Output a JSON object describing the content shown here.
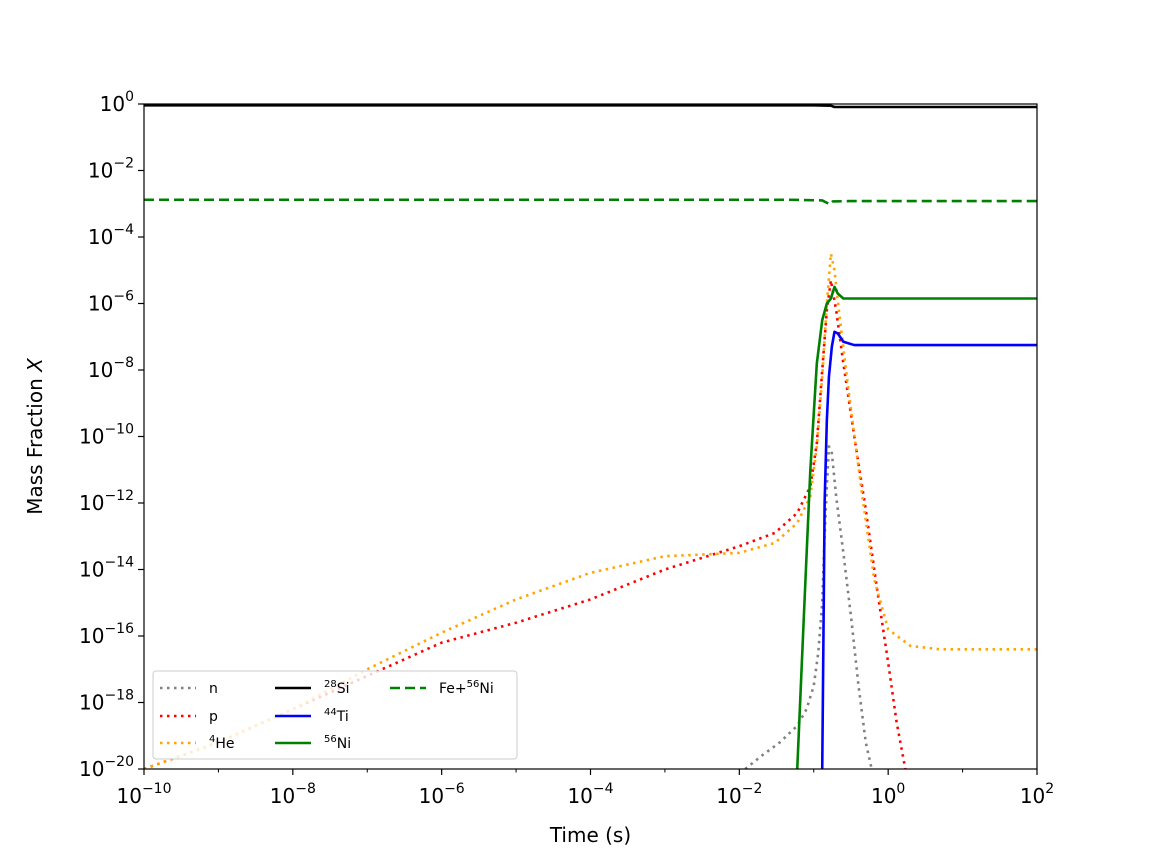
{
  "chart_data": {
    "type": "line",
    "title": "",
    "xlabel": "Time (s)",
    "ylabel": "Mass Fraction X",
    "xscale": "log",
    "yscale": "log",
    "xlim": [
      1e-10,
      100
    ],
    "ylim": [
      1e-20,
      1
    ],
    "x_ticks": [
      {
        "base": "10",
        "exp": "−10"
      },
      {
        "base": "10",
        "exp": "−8"
      },
      {
        "base": "10",
        "exp": "−6"
      },
      {
        "base": "10",
        "exp": "−4"
      },
      {
        "base": "10",
        "exp": "−2"
      },
      {
        "base": "10",
        "exp": "0"
      },
      {
        "base": "10",
        "exp": "2"
      }
    ],
    "y_ticks": [
      {
        "base": "10",
        "exp": "0"
      },
      {
        "base": "10",
        "exp": "−2"
      },
      {
        "base": "10",
        "exp": "−4"
      },
      {
        "base": "10",
        "exp": "−6"
      },
      {
        "base": "10",
        "exp": "−8"
      },
      {
        "base": "10",
        "exp": "−10"
      },
      {
        "base": "10",
        "exp": "−12"
      },
      {
        "base": "10",
        "exp": "−14"
      },
      {
        "base": "10",
        "exp": "−16"
      },
      {
        "base": "10",
        "exp": "−18"
      },
      {
        "base": "10",
        "exp": "−20"
      }
    ],
    "grid": false,
    "legend_position": "bottom-left",
    "legend_columns": 3,
    "series": [
      {
        "name": "n",
        "sup": "",
        "color": "#808080",
        "dash": "dotted",
        "points": [
          [
            0.012,
            -20
          ],
          [
            0.02,
            -19.6
          ],
          [
            0.035,
            -19.2
          ],
          [
            0.06,
            -18.7
          ],
          [
            0.08,
            -18.2
          ],
          [
            0.1,
            -17.5
          ],
          [
            0.115,
            -16.5
          ],
          [
            0.13,
            -15
          ],
          [
            0.14,
            -13
          ],
          [
            0.15,
            -11.5
          ],
          [
            0.16,
            -10.3
          ],
          [
            0.175,
            -10.5
          ],
          [
            0.2,
            -11.8
          ],
          [
            0.25,
            -13.5
          ],
          [
            0.32,
            -15.5
          ],
          [
            0.4,
            -17.5
          ],
          [
            0.5,
            -19.2
          ],
          [
            0.6,
            -20
          ]
        ]
      },
      {
        "name": "p",
        "sup": "",
        "color": "#ff0000",
        "dash": "dotted",
        "points": [
          [
            1e-10,
            -20
          ],
          [
            1e-09,
            -19.2
          ],
          [
            1e-08,
            -18.2
          ],
          [
            1e-07,
            -17.2
          ],
          [
            1e-06,
            -16.2
          ],
          [
            1e-05,
            -15.6
          ],
          [
            0.0001,
            -14.9
          ],
          [
            0.001,
            -14.0
          ],
          [
            0.01,
            -13.3
          ],
          [
            0.03,
            -12.9
          ],
          [
            0.06,
            -12.3
          ],
          [
            0.09,
            -11.5
          ],
          [
            0.11,
            -10.2
          ],
          [
            0.13,
            -8
          ],
          [
            0.15,
            -6.2
          ],
          [
            0.17,
            -5.3
          ],
          [
            0.2,
            -6.2
          ],
          [
            0.25,
            -7.8
          ],
          [
            0.35,
            -10
          ],
          [
            0.5,
            -12.2
          ],
          [
            0.7,
            -14.5
          ],
          [
            1.0,
            -16.8
          ],
          [
            1.3,
            -18.6
          ],
          [
            1.7,
            -20
          ]
        ]
      },
      {
        "name": "He",
        "sup": "4",
        "color": "#ffa500",
        "dash": "dotted",
        "points": [
          [
            1e-10,
            -20
          ],
          [
            1e-09,
            -19.2
          ],
          [
            1e-08,
            -18.2
          ],
          [
            1e-07,
            -17.0
          ],
          [
            1e-06,
            -15.9
          ],
          [
            1e-05,
            -14.9
          ],
          [
            0.0001,
            -14.1
          ],
          [
            0.001,
            -13.6
          ],
          [
            0.01,
            -13.5
          ],
          [
            0.03,
            -13.2
          ],
          [
            0.06,
            -12.6
          ],
          [
            0.09,
            -11.8
          ],
          [
            0.11,
            -10.3
          ],
          [
            0.13,
            -8.2
          ],
          [
            0.15,
            -6.0
          ],
          [
            0.17,
            -4.5
          ],
          [
            0.19,
            -5.0
          ],
          [
            0.22,
            -6.3
          ],
          [
            0.3,
            -8.8
          ],
          [
            0.45,
            -11.8
          ],
          [
            0.65,
            -14.3
          ],
          [
            1.0,
            -15.8
          ],
          [
            2.0,
            -16.3
          ],
          [
            5.0,
            -16.4
          ],
          [
            20,
            -16.4
          ],
          [
            100,
            -16.4
          ]
        ]
      },
      {
        "name": "Si",
        "sup": "28",
        "color": "#000000",
        "dash": "solid",
        "points": [
          [
            1e-10,
            -0.04
          ],
          [
            0.1,
            -0.04
          ],
          [
            0.17,
            -0.05
          ],
          [
            0.19,
            -0.09
          ],
          [
            0.3,
            -0.09
          ],
          [
            100,
            -0.09
          ]
        ]
      },
      {
        "name": "Ti",
        "sup": "44",
        "color": "#0000ff",
        "dash": "solid",
        "points": [
          [
            0.13,
            -20
          ],
          [
            0.135,
            -16
          ],
          [
            0.14,
            -12
          ],
          [
            0.15,
            -9.5
          ],
          [
            0.16,
            -8.2
          ],
          [
            0.175,
            -7.3
          ],
          [
            0.19,
            -6.85
          ],
          [
            0.21,
            -6.9
          ],
          [
            0.25,
            -7.15
          ],
          [
            0.35,
            -7.25
          ],
          [
            1,
            -7.25
          ],
          [
            100,
            -7.25
          ]
        ]
      },
      {
        "name": "Ni",
        "sup": "56",
        "color": "#008000",
        "dash": "solid",
        "points": [
          [
            0.06,
            -20
          ],
          [
            0.075,
            -15
          ],
          [
            0.09,
            -11
          ],
          [
            0.11,
            -7.8
          ],
          [
            0.13,
            -6.5
          ],
          [
            0.15,
            -6.0
          ],
          [
            0.17,
            -5.85
          ],
          [
            0.19,
            -5.5
          ],
          [
            0.21,
            -5.7
          ],
          [
            0.25,
            -5.85
          ],
          [
            0.35,
            -5.85
          ],
          [
            1,
            -5.85
          ],
          [
            100,
            -5.85
          ]
        ]
      },
      {
        "name": "Fe+",
        "sup": "56",
        "suffix": "Ni",
        "color": "#008000",
        "dash": "dashed",
        "points": [
          [
            1e-10,
            -2.88
          ],
          [
            0.05,
            -2.88
          ],
          [
            0.13,
            -2.9
          ],
          [
            0.15,
            -2.97
          ],
          [
            0.165,
            -3.02
          ],
          [
            0.18,
            -2.93
          ],
          [
            0.3,
            -2.92
          ],
          [
            100,
            -2.92
          ]
        ]
      }
    ]
  }
}
